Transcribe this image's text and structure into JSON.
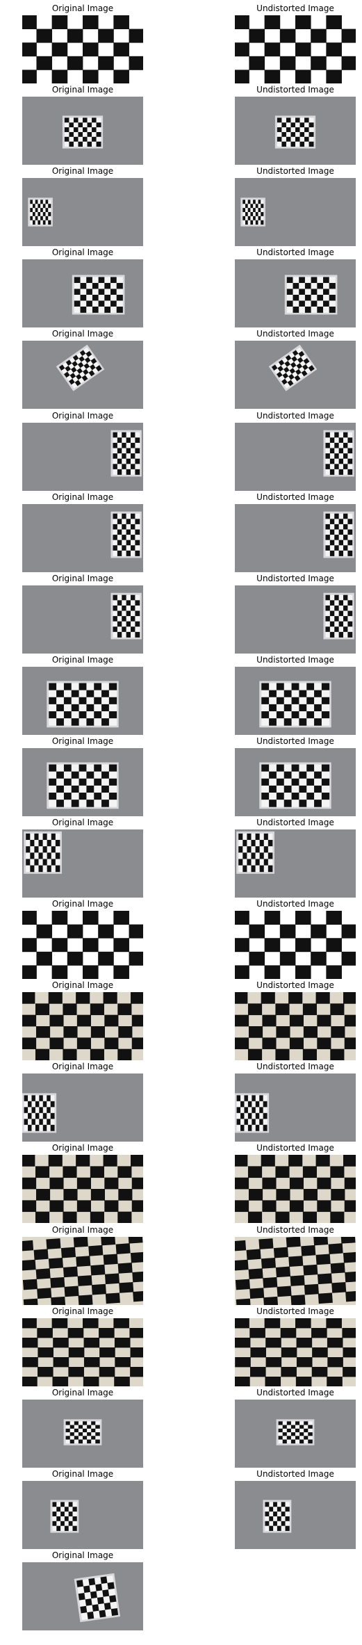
{
  "left_title": "Original Image",
  "right_title": "Undistorted Image",
  "rows": [
    {
      "kind": "closeup",
      "rows": 5,
      "cols": 8,
      "tilt": 0,
      "right": true
    },
    {
      "kind": "small",
      "board": "center",
      "rows": 6,
      "cols": 8,
      "tilt": 0,
      "right": true
    },
    {
      "kind": "small",
      "board": "far-left",
      "rows": 6,
      "cols": 8,
      "tilt": 0,
      "right": true
    },
    {
      "kind": "small",
      "board": "right",
      "rows": 6,
      "cols": 8,
      "tilt": 0,
      "right": true
    },
    {
      "kind": "small",
      "board": "left-rotated",
      "rows": 6,
      "cols": 8,
      "tilt": -35,
      "right": true
    },
    {
      "kind": "small",
      "board": "right-edge",
      "rows": 8,
      "cols": 6,
      "tilt": 0,
      "right": true
    },
    {
      "kind": "small",
      "board": "right-edge",
      "rows": 8,
      "cols": 6,
      "tilt": 0,
      "right": true
    },
    {
      "kind": "small",
      "board": "right-edge",
      "rows": 8,
      "cols": 6,
      "tilt": 0,
      "right": true
    },
    {
      "kind": "small",
      "board": "center-large",
      "rows": 6,
      "cols": 9,
      "tilt": 0,
      "right": true
    },
    {
      "kind": "small",
      "board": "center-large",
      "rows": 6,
      "cols": 9,
      "tilt": 0,
      "right": true
    },
    {
      "kind": "small",
      "board": "top-left",
      "rows": 6,
      "cols": 8,
      "tilt": 0,
      "right": true
    },
    {
      "kind": "closeup",
      "rows": 5,
      "cols": 8,
      "tilt": 0,
      "right": true
    },
    {
      "kind": "closeup-warped",
      "rows": 6,
      "cols": 9,
      "tilt": 0,
      "right": true
    },
    {
      "kind": "small",
      "board": "left-mid",
      "rows": 6,
      "cols": 8,
      "tilt": 0,
      "right": true
    },
    {
      "kind": "closeup-warped",
      "rows": 6,
      "cols": 9,
      "tilt": 0,
      "right": true
    },
    {
      "kind": "closeup-warped",
      "rows": 7,
      "cols": 9,
      "tilt": -4,
      "right": true
    },
    {
      "kind": "closeup-warped",
      "rows": 7,
      "cols": 8,
      "tilt": 0,
      "right": true
    },
    {
      "kind": "small",
      "board": "tiny-center",
      "rows": 6,
      "cols": 8,
      "tilt": 0,
      "right": true
    },
    {
      "kind": "small",
      "board": "tiny-left",
      "rows": 6,
      "cols": 6,
      "tilt": 0,
      "right": true
    },
    {
      "kind": "small",
      "board": "tiny-right",
      "rows": 6,
      "cols": 6,
      "tilt": -8,
      "right": false
    }
  ]
}
